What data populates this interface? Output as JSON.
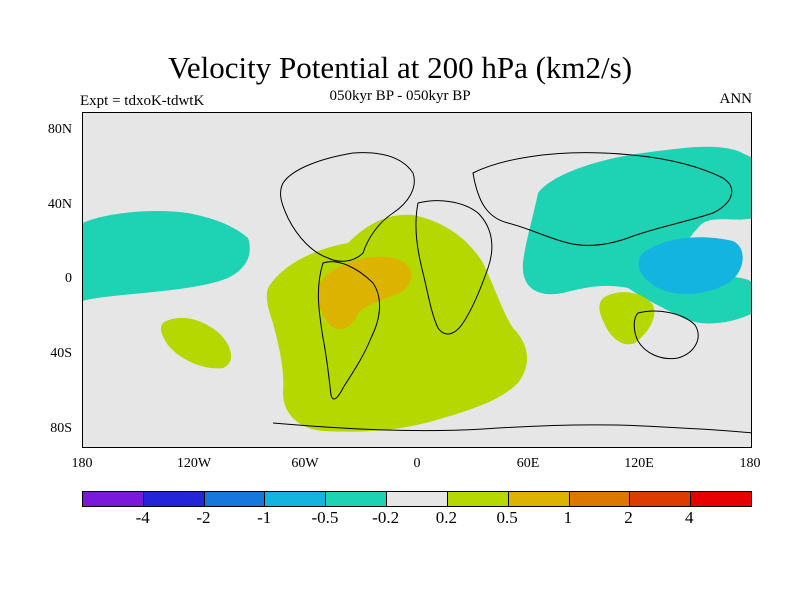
{
  "title": "Velocity Potential at 200 hPa (km2/s)",
  "subtitle": "050kyr BP - 050kyr BP",
  "expt_label": "Expt = tdxoK-tdwtK",
  "season": "ANN",
  "y_ticks": [
    "80N",
    "40N",
    "0",
    "40S",
    "80S"
  ],
  "x_ticks": [
    "180",
    "120W",
    "60W",
    "0",
    "60E",
    "120E",
    "180"
  ],
  "colorbar": {
    "colors": [
      "#7a18dc",
      "#2424d8",
      "#1478dc",
      "#14b4e0",
      "#1ed2b4",
      "#e6e6e6",
      "#b4d800",
      "#dcb400",
      "#dc7800",
      "#dc3c00",
      "#e60000"
    ],
    "labels": [
      "-4",
      "-2",
      "-1",
      "-0.5",
      "-0.2",
      "0.2",
      "0.5",
      "1",
      "2",
      "4"
    ]
  },
  "chart_data": {
    "type": "map-contour",
    "field": "velocity potential at 200 hPa difference",
    "levels": [
      -4,
      -2,
      -1,
      -0.5,
      -0.2,
      0.2,
      0.5,
      1,
      2,
      4
    ],
    "regions": [
      {
        "name": "Atlantic / South America / Africa",
        "level_range": [
          0.2,
          0.5
        ],
        "color": "#b4d800"
      },
      {
        "name": "Amazon basin core",
        "level_range": [
          0.5,
          1
        ],
        "color": "#dcb400"
      },
      {
        "name": "Southeast Pacific",
        "level_range": [
          0.2,
          0.5
        ],
        "color": "#b4d800"
      },
      {
        "name": "Western Australia",
        "level_range": [
          0.2,
          0.5
        ],
        "color": "#b4d800"
      },
      {
        "name": "Eurasia / Indian Ocean / West Pacific",
        "level_range": [
          -0.5,
          -0.2
        ],
        "color": "#1ed2b4"
      },
      {
        "name": "Maritime Continent core",
        "level_range": [
          -1,
          -0.5
        ],
        "color": "#14b4e0"
      },
      {
        "name": "Central Pacific",
        "level_range": [
          -0.5,
          -0.2
        ],
        "color": "#1ed2b4"
      }
    ],
    "xlim": [
      -180,
      180
    ],
    "ylim": [
      -90,
      90
    ]
  }
}
